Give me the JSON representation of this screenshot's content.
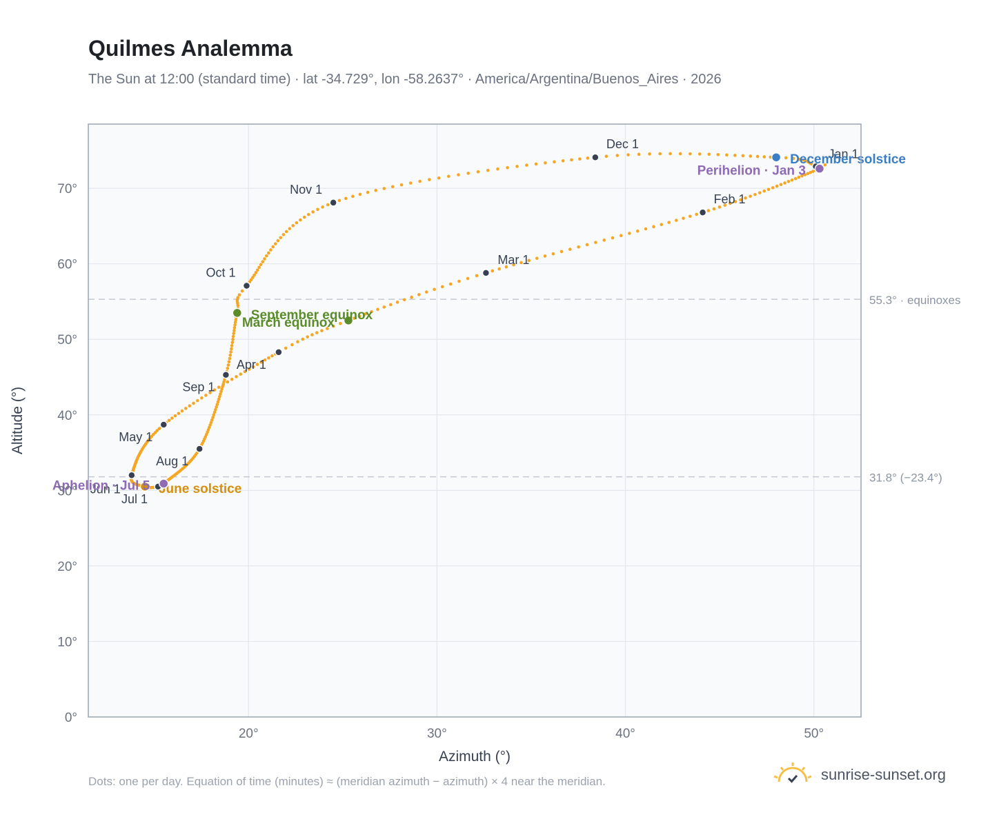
{
  "header": {
    "title": "Quilmes Analemma",
    "subtitle": "The Sun at 12:00 (standard time) · lat -34.729°, lon -58.2637° · America/Argentina/Buenos_Aires · 2026"
  },
  "footer": {
    "note": "Dots: one per day. Equation of time (minutes) ≈ (meridian azimuth − azimuth) × 4 near the meridian.",
    "brand": "sunrise-sunset.org"
  },
  "colors": {
    "path": "#f5a623",
    "month_marker": "#374151",
    "equinox": "#5b8c2a",
    "june_solstice": "#d4900e",
    "december_solstice": "#3b7ec4",
    "apsis": "#8e6bb3",
    "ref_line": "#c3c9d2"
  },
  "chart_data": {
    "type": "scatter",
    "xlabel": "Azimuth (°)",
    "ylabel": "Altitude (°)",
    "xlim": [
      11.5,
      52.5
    ],
    "ylim": [
      0,
      78.5
    ],
    "x_ticks": [
      20,
      30,
      40,
      50
    ],
    "x_tick_labels": [
      "20°",
      "30°",
      "40°",
      "50°"
    ],
    "y_ticks": [
      0,
      10,
      20,
      30,
      40,
      50,
      60,
      70
    ],
    "y_tick_labels": [
      "0°",
      "10°",
      "20°",
      "30°",
      "40°",
      "50°",
      "60°",
      "70°"
    ],
    "grid": true,
    "daily_path": {
      "points_per_year": 365,
      "anchors": [
        {
          "date": "Jan 1",
          "day": 1,
          "azimuth": 50.1,
          "altitude": 72.9
        },
        {
          "date": "Jan 3",
          "day": 3,
          "azimuth": 50.3,
          "altitude": 72.6
        },
        {
          "date": "Feb 1",
          "day": 32,
          "azimuth": 44.1,
          "altitude": 66.8
        },
        {
          "date": "Mar 1",
          "day": 60,
          "azimuth": 32.6,
          "altitude": 58.8
        },
        {
          "date": "Mar 20",
          "day": 79,
          "azimuth": 25.3,
          "altitude": 52.5
        },
        {
          "date": "Apr 1",
          "day": 91,
          "azimuth": 21.6,
          "altitude": 48.3
        },
        {
          "date": "May 1",
          "day": 121,
          "azimuth": 15.5,
          "altitude": 38.7
        },
        {
          "date": "Jun 1",
          "day": 152,
          "azimuth": 13.8,
          "altitude": 32.0
        },
        {
          "date": "Jun 21",
          "day": 172,
          "azimuth": 14.5,
          "altitude": 30.5
        },
        {
          "date": "Jul 1",
          "day": 182,
          "azimuth": 15.2,
          "altitude": 30.5
        },
        {
          "date": "Jul 5",
          "day": 186,
          "azimuth": 15.5,
          "altitude": 30.9
        },
        {
          "date": "Aug 1",
          "day": 213,
          "azimuth": 17.4,
          "altitude": 35.5
        },
        {
          "date": "Sep 1",
          "day": 244,
          "azimuth": 18.8,
          "altitude": 45.3
        },
        {
          "date": "Sep 22",
          "day": 265,
          "azimuth": 19.4,
          "altitude": 53.5
        },
        {
          "date": "Oct 1",
          "day": 274,
          "azimuth": 19.9,
          "altitude": 57.1
        },
        {
          "date": "Nov 1",
          "day": 305,
          "azimuth": 24.5,
          "altitude": 68.1
        },
        {
          "date": "Dec 1",
          "day": 335,
          "azimuth": 38.4,
          "altitude": 74.1
        },
        {
          "date": "Dec 21",
          "day": 355,
          "azimuth": 48.0,
          "altitude": 74.1
        },
        {
          "date": "Dec 31",
          "day": 365,
          "azimuth": 50.0,
          "altitude": 73.1
        }
      ]
    },
    "month_markers": [
      {
        "label": "Jan 1",
        "azimuth": 50.1,
        "altitude": 72.9,
        "anchor": "start",
        "dx": 18,
        "dy": -12
      },
      {
        "label": "Feb 1",
        "azimuth": 44.1,
        "altitude": 66.8,
        "anchor": "start",
        "dx": 16,
        "dy": -13
      },
      {
        "label": "Mar 1",
        "azimuth": 32.6,
        "altitude": 58.8,
        "anchor": "start",
        "dx": 17,
        "dy": -13
      },
      {
        "label": "Apr 1",
        "azimuth": 21.6,
        "altitude": 48.3,
        "anchor": "end",
        "dx": -18,
        "dy": 24
      },
      {
        "label": "May 1",
        "azimuth": 15.5,
        "altitude": 38.7,
        "anchor": "end",
        "dx": -16,
        "dy": 24
      },
      {
        "label": "Jun 1",
        "azimuth": 13.8,
        "altitude": 32.0,
        "anchor": "end",
        "dx": -16,
        "dy": 26
      },
      {
        "label": "Jul 1",
        "azimuth": 15.2,
        "altitude": 30.5,
        "anchor": "end",
        "dx": -15,
        "dy": 24
      },
      {
        "label": "Aug 1",
        "azimuth": 17.4,
        "altitude": 35.5,
        "anchor": "end",
        "dx": -16,
        "dy": 24
      },
      {
        "label": "Sep 1",
        "azimuth": 18.8,
        "altitude": 45.3,
        "anchor": "end",
        "dx": -16,
        "dy": 24
      },
      {
        "label": "Oct 1",
        "azimuth": 19.9,
        "altitude": 57.1,
        "anchor": "end",
        "dx": -16,
        "dy": -13
      },
      {
        "label": "Nov 1",
        "azimuth": 24.5,
        "altitude": 68.1,
        "anchor": "end",
        "dx": -16,
        "dy": -13
      },
      {
        "label": "Dec 1",
        "azimuth": 38.4,
        "altitude": 74.1,
        "anchor": "start",
        "dx": 16,
        "dy": -13
      }
    ],
    "events": [
      {
        "label": "March equinox",
        "azimuth": 25.3,
        "altitude": 52.5,
        "color": "#5b8c2a",
        "anchor": "end",
        "dx": -20,
        "dy": 9
      },
      {
        "label": "June solstice",
        "azimuth": 14.5,
        "altitude": 30.5,
        "color": "#d4900e",
        "anchor": "start",
        "dx": 20,
        "dy": 9
      },
      {
        "label": "September equinox",
        "azimuth": 19.4,
        "altitude": 53.5,
        "color": "#5b8c2a",
        "anchor": "start",
        "dx": 20,
        "dy": 9
      },
      {
        "label": "December solstice",
        "azimuth": 48.0,
        "altitude": 74.1,
        "color": "#3b7ec4",
        "anchor": "start",
        "dx": 20,
        "dy": 9
      },
      {
        "label": "Perihelion · Jan 3",
        "azimuth": 50.3,
        "altitude": 72.6,
        "color": "#8e6bb3",
        "anchor": "end",
        "dx": -20,
        "dy": 9
      },
      {
        "label": "Aphelion · Jul 5",
        "azimuth": 15.5,
        "altitude": 30.9,
        "color": "#8e6bb3",
        "anchor": "end",
        "dx": -20,
        "dy": 9
      }
    ],
    "reference_lines": [
      {
        "altitude": 55.3,
        "label": "55.3° · equinoxes"
      },
      {
        "altitude": 31.8,
        "label": "31.8° (−23.4°)"
      }
    ]
  }
}
